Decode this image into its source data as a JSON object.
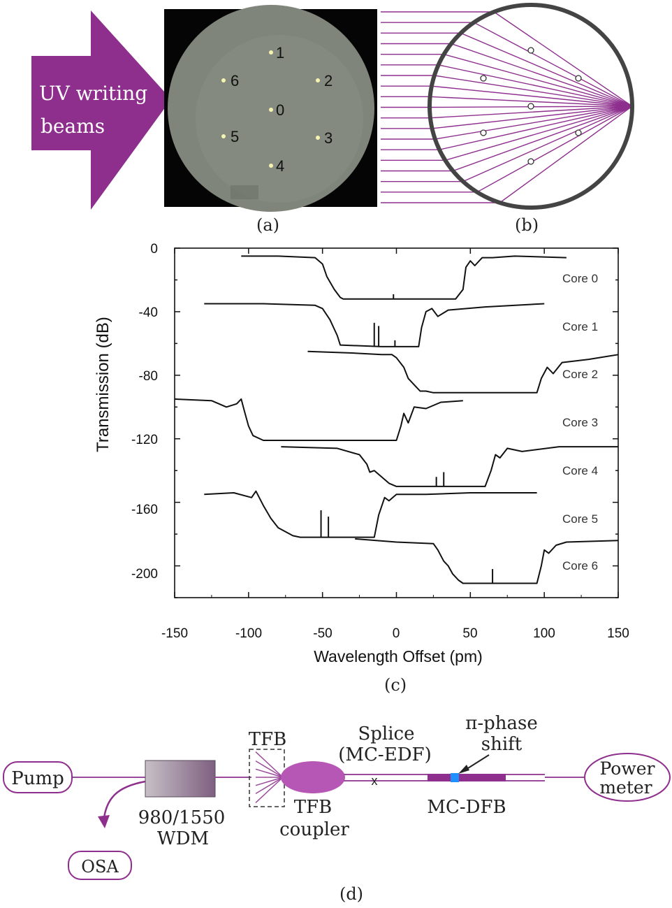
{
  "panel_a": {
    "arrow_text_line1": "UV writing",
    "arrow_text_line2": "beams",
    "core_labels": [
      "0",
      "1",
      "2",
      "3",
      "4",
      "5",
      "6"
    ],
    "caption": "(a)"
  },
  "panel_b": {
    "caption": "(b)"
  },
  "panel_c": {
    "caption": "(c)"
  },
  "panel_d": {
    "pump": "Pump",
    "osa": "OSA",
    "wdm_line1": "980/1550",
    "wdm_line2": "WDM",
    "tfb": "TFB",
    "coupler_line1": "TFB",
    "coupler_line2": "coupler",
    "splice_line1": "Splice",
    "splice_line2": "(MC-EDF)",
    "splice_mark": "x",
    "phase_line1": "π-phase",
    "phase_line2": "shift",
    "mcdfb": "MC-DFB",
    "power_line1": "Power",
    "power_line2": "meter",
    "caption": "(d)"
  },
  "colors": {
    "purple": "#8e2f8e",
    "fiber": "#9a4a9a",
    "blue": "#1e90ff"
  },
  "chart_data": {
    "type": "line",
    "title": "",
    "xlabel": "Wavelength Offset (pm)",
    "ylabel": "Transmission (dB)",
    "xlim": [
      -150,
      150
    ],
    "ylim": [
      -220,
      0
    ],
    "xticks": [
      "-150",
      "-100",
      "-50",
      "0",
      "50",
      "100",
      "150"
    ],
    "yticks": [
      "0",
      "-40",
      "-80",
      "-120",
      "-160",
      "-200"
    ],
    "series": [
      {
        "name": "Core 0",
        "x": [
          -105,
          -80,
          -55,
          -50,
          -47,
          -42,
          -38,
          -36,
          -20,
          0,
          40,
          45,
          47,
          50,
          53,
          58,
          65,
          80,
          115
        ],
        "y": [
          -5,
          -5,
          -6,
          -10,
          -18,
          -26,
          -31,
          -32,
          -32,
          -32,
          -32,
          -26,
          -12,
          -8,
          -11,
          -6,
          -6,
          -5,
          -6
        ]
      },
      {
        "name": "Core 1",
        "x": [
          -130,
          -90,
          -55,
          -50,
          -45,
          -40,
          -38,
          -10,
          10,
          15,
          17,
          20,
          24,
          28,
          35,
          60,
          100
        ],
        "y": [
          -35,
          -35,
          -36,
          -38,
          -45,
          -55,
          -61,
          -62,
          -62,
          -62,
          -50,
          -40,
          -38,
          -43,
          -39,
          -37,
          -35
        ]
      },
      {
        "name": "Core 2",
        "x": [
          -60,
          -30,
          -10,
          -3,
          0,
          5,
          8,
          13,
          16,
          20,
          25,
          45,
          95,
          98,
          102,
          106,
          112,
          130,
          150
        ],
        "y": [
          -65,
          -66,
          -67,
          -67,
          -69,
          -75,
          -82,
          -87,
          -90,
          -90,
          -91,
          -91,
          -91,
          -82,
          -75,
          -79,
          -72,
          -70,
          -67
        ]
      },
      {
        "name": "Core 3",
        "x": [
          -150,
          -125,
          -115,
          -108,
          -105,
          -103,
          -100,
          -97,
          -90,
          -50,
          0,
          3,
          5,
          8,
          12,
          20,
          30,
          45
        ],
        "y": [
          -95,
          -96,
          -100,
          -98,
          -95,
          -102,
          -112,
          -118,
          -121,
          -121,
          -121,
          -112,
          -104,
          -110,
          -100,
          -101,
          -97,
          -96
        ]
      },
      {
        "name": "Core 4",
        "x": [
          -78,
          -40,
          -25,
          -20,
          -18,
          -15,
          -10,
          -5,
          0,
          20,
          60,
          64,
          67,
          70,
          75,
          85,
          110,
          150
        ],
        "y": [
          -125,
          -126,
          -130,
          -136,
          -141,
          -140,
          -144,
          -148,
          -150,
          -150,
          -150,
          -140,
          -130,
          -132,
          -126,
          -128,
          -125,
          -125
        ]
      },
      {
        "name": "Core 5",
        "x": [
          -130,
          -110,
          -98,
          -95,
          -90,
          -85,
          -80,
          -70,
          -65,
          -40,
          -15,
          -12,
          -8,
          -5,
          0,
          20,
          50,
          95
        ],
        "y": [
          -155,
          -154,
          -157,
          -153,
          -162,
          -170,
          -176,
          -181,
          -182,
          -182,
          -182,
          -168,
          -157,
          -159,
          -155,
          -155,
          -154,
          -154
        ]
      },
      {
        "name": "Core 6",
        "x": [
          -28,
          0,
          25,
          28,
          32,
          35,
          38,
          42,
          45,
          90,
          95,
          98,
          100,
          103,
          108,
          115,
          150
        ],
        "y": [
          -183,
          -185,
          -186,
          -190,
          -197,
          -200,
          -205,
          -209,
          -211,
          -211,
          -211,
          -200,
          -190,
          -192,
          -187,
          -185,
          -184
        ]
      }
    ],
    "spikes": [
      {
        "series": 1,
        "x": -15,
        "y1": -62,
        "y2": -47
      },
      {
        "series": 1,
        "x": -12,
        "y1": -62,
        "y2": -49
      },
      {
        "series": 1,
        "x": -1,
        "y1": -62,
        "y2": -58
      },
      {
        "series": 0,
        "x": -2,
        "y1": -32,
        "y2": -29
      },
      {
        "series": 4,
        "x": 27,
        "y1": -150,
        "y2": -144
      },
      {
        "series": 4,
        "x": 32,
        "y1": -150,
        "y2": -141
      },
      {
        "series": 5,
        "x": -51,
        "y1": -182,
        "y2": -165
      },
      {
        "series": 5,
        "x": -46,
        "y1": -182,
        "y2": -169
      },
      {
        "series": 6,
        "x": 65,
        "y1": -211,
        "y2": -202
      }
    ]
  }
}
